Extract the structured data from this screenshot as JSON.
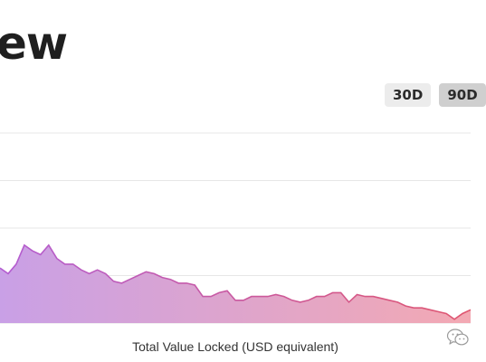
{
  "page": {
    "title": "ew"
  },
  "range_tabs": [
    {
      "label": "30D",
      "active": false
    },
    {
      "label": "90D",
      "active": true
    }
  ],
  "chart_caption": "Total Value Locked (USD equivalent)",
  "icons": {
    "watermark": "wechat-icon"
  },
  "colors": {
    "gradient_start": "#c9a0e6",
    "gradient_end": "#f3a9b3",
    "line_start": "#b35dd2",
    "line_end": "#e0566f",
    "grid": "#e7e7e7"
  },
  "chart_data": {
    "type": "area",
    "title": "",
    "xlabel": "Total Value Locked (USD equivalent)",
    "ylabel": "",
    "grid": true,
    "ylim": [
      0,
      100
    ],
    "series": [
      {
        "values": [
          29,
          26,
          31,
          41,
          38,
          36,
          41,
          34,
          31,
          31,
          28,
          26,
          28,
          26,
          22,
          21,
          23,
          25,
          27,
          26,
          24,
          23,
          21,
          21,
          20,
          14,
          14,
          16,
          17,
          12,
          12,
          14,
          14,
          14,
          15,
          14,
          12,
          11,
          12,
          14,
          14,
          16,
          16,
          11,
          15,
          14,
          14,
          13,
          12,
          11,
          9,
          8,
          8,
          7,
          6,
          5,
          2,
          5,
          7
        ]
      }
    ]
  }
}
